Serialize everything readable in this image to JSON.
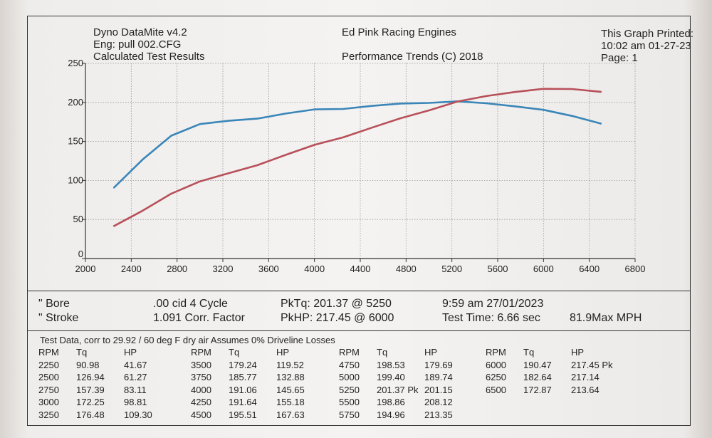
{
  "header": {
    "left": [
      "Dyno DataMite v4.2",
      "Eng: pull 002.CFG",
      "Calculated Test Results"
    ],
    "center": [
      "Ed Pink Racing Engines",
      "Performance Trends (C) 2018"
    ],
    "right": [
      "This Graph Printed:",
      "10:02 am 01-27-23",
      "Page: 1"
    ]
  },
  "chart_data": {
    "type": "line",
    "x": [
      2250,
      2500,
      2750,
      3000,
      3250,
      3500,
      3750,
      4000,
      4250,
      4500,
      4750,
      5000,
      5250,
      5500,
      5750,
      6000,
      6250,
      6500
    ],
    "series": [
      {
        "name": "Tq",
        "color": "#3a86b8",
        "values": [
          90.98,
          126.94,
          157.39,
          172.25,
          176.48,
          179.24,
          185.77,
          191.06,
          191.64,
          195.51,
          198.53,
          199.4,
          201.37,
          198.86,
          194.96,
          190.47,
          182.64,
          172.87
        ]
      },
      {
        "name": "HP",
        "color": "#b8505a",
        "values": [
          41.67,
          61.27,
          83.11,
          98.81,
          109.3,
          119.52,
          132.88,
          145.65,
          155.18,
          167.63,
          179.69,
          189.74,
          201.15,
          208.12,
          213.35,
          217.45,
          217.14,
          213.64
        ]
      }
    ],
    "xlim": [
      2000,
      6800
    ],
    "ylim": [
      0,
      250
    ],
    "xticks": [
      "2000",
      "2400",
      "2800",
      "3200",
      "3600",
      "4000",
      "4400",
      "4800",
      "5200",
      "5600",
      "6000",
      "6400",
      "6800"
    ],
    "yticks": [
      "0",
      "50",
      "100",
      "150",
      "200",
      "250"
    ],
    "grid": true
  },
  "summary": {
    "bore_label": "\" Bore",
    "stroke_label": "\" Stroke",
    "cid": ".00 cid  4 Cycle",
    "corr": "1.091 Corr. Factor",
    "pktq": "PkTq: 201.37 @  5250",
    "pkhp": "PkHP: 217.45 @  6000",
    "time": "9:59 am  27/01/2023",
    "test_time": "Test Time: 6.66 sec",
    "max_mph": "81.9Max MPH"
  },
  "table": {
    "title": "Test Data, corr to 29.92 / 60 deg F dry air  Assumes 0% Driveline Losses",
    "headers": [
      "RPM",
      "Tq",
      "HP"
    ],
    "groups": [
      [
        [
          "2250",
          "90.98",
          "41.67"
        ],
        [
          "2500",
          "126.94",
          "61.27"
        ],
        [
          "2750",
          "157.39",
          "83.11"
        ],
        [
          "3000",
          "172.25",
          "98.81"
        ],
        [
          "3250",
          "176.48",
          "109.30"
        ]
      ],
      [
        [
          "3500",
          "179.24",
          "119.52"
        ],
        [
          "3750",
          "185.77",
          "132.88"
        ],
        [
          "4000",
          "191.06",
          "145.65"
        ],
        [
          "4250",
          "191.64",
          "155.18"
        ],
        [
          "4500",
          "195.51",
          "167.63"
        ]
      ],
      [
        [
          "4750",
          "198.53",
          "179.69"
        ],
        [
          "5000",
          "199.40",
          "189.74"
        ],
        [
          "5250",
          "201.37 Pk",
          "201.15"
        ],
        [
          "5500",
          "198.86",
          "208.12"
        ],
        [
          "5750",
          "194.96",
          "213.35"
        ]
      ],
      [
        [
          "6000",
          "190.47",
          "217.45 Pk"
        ],
        [
          "6250",
          "182.64",
          "217.14"
        ],
        [
          "6500",
          "172.87",
          "213.64"
        ]
      ]
    ]
  }
}
